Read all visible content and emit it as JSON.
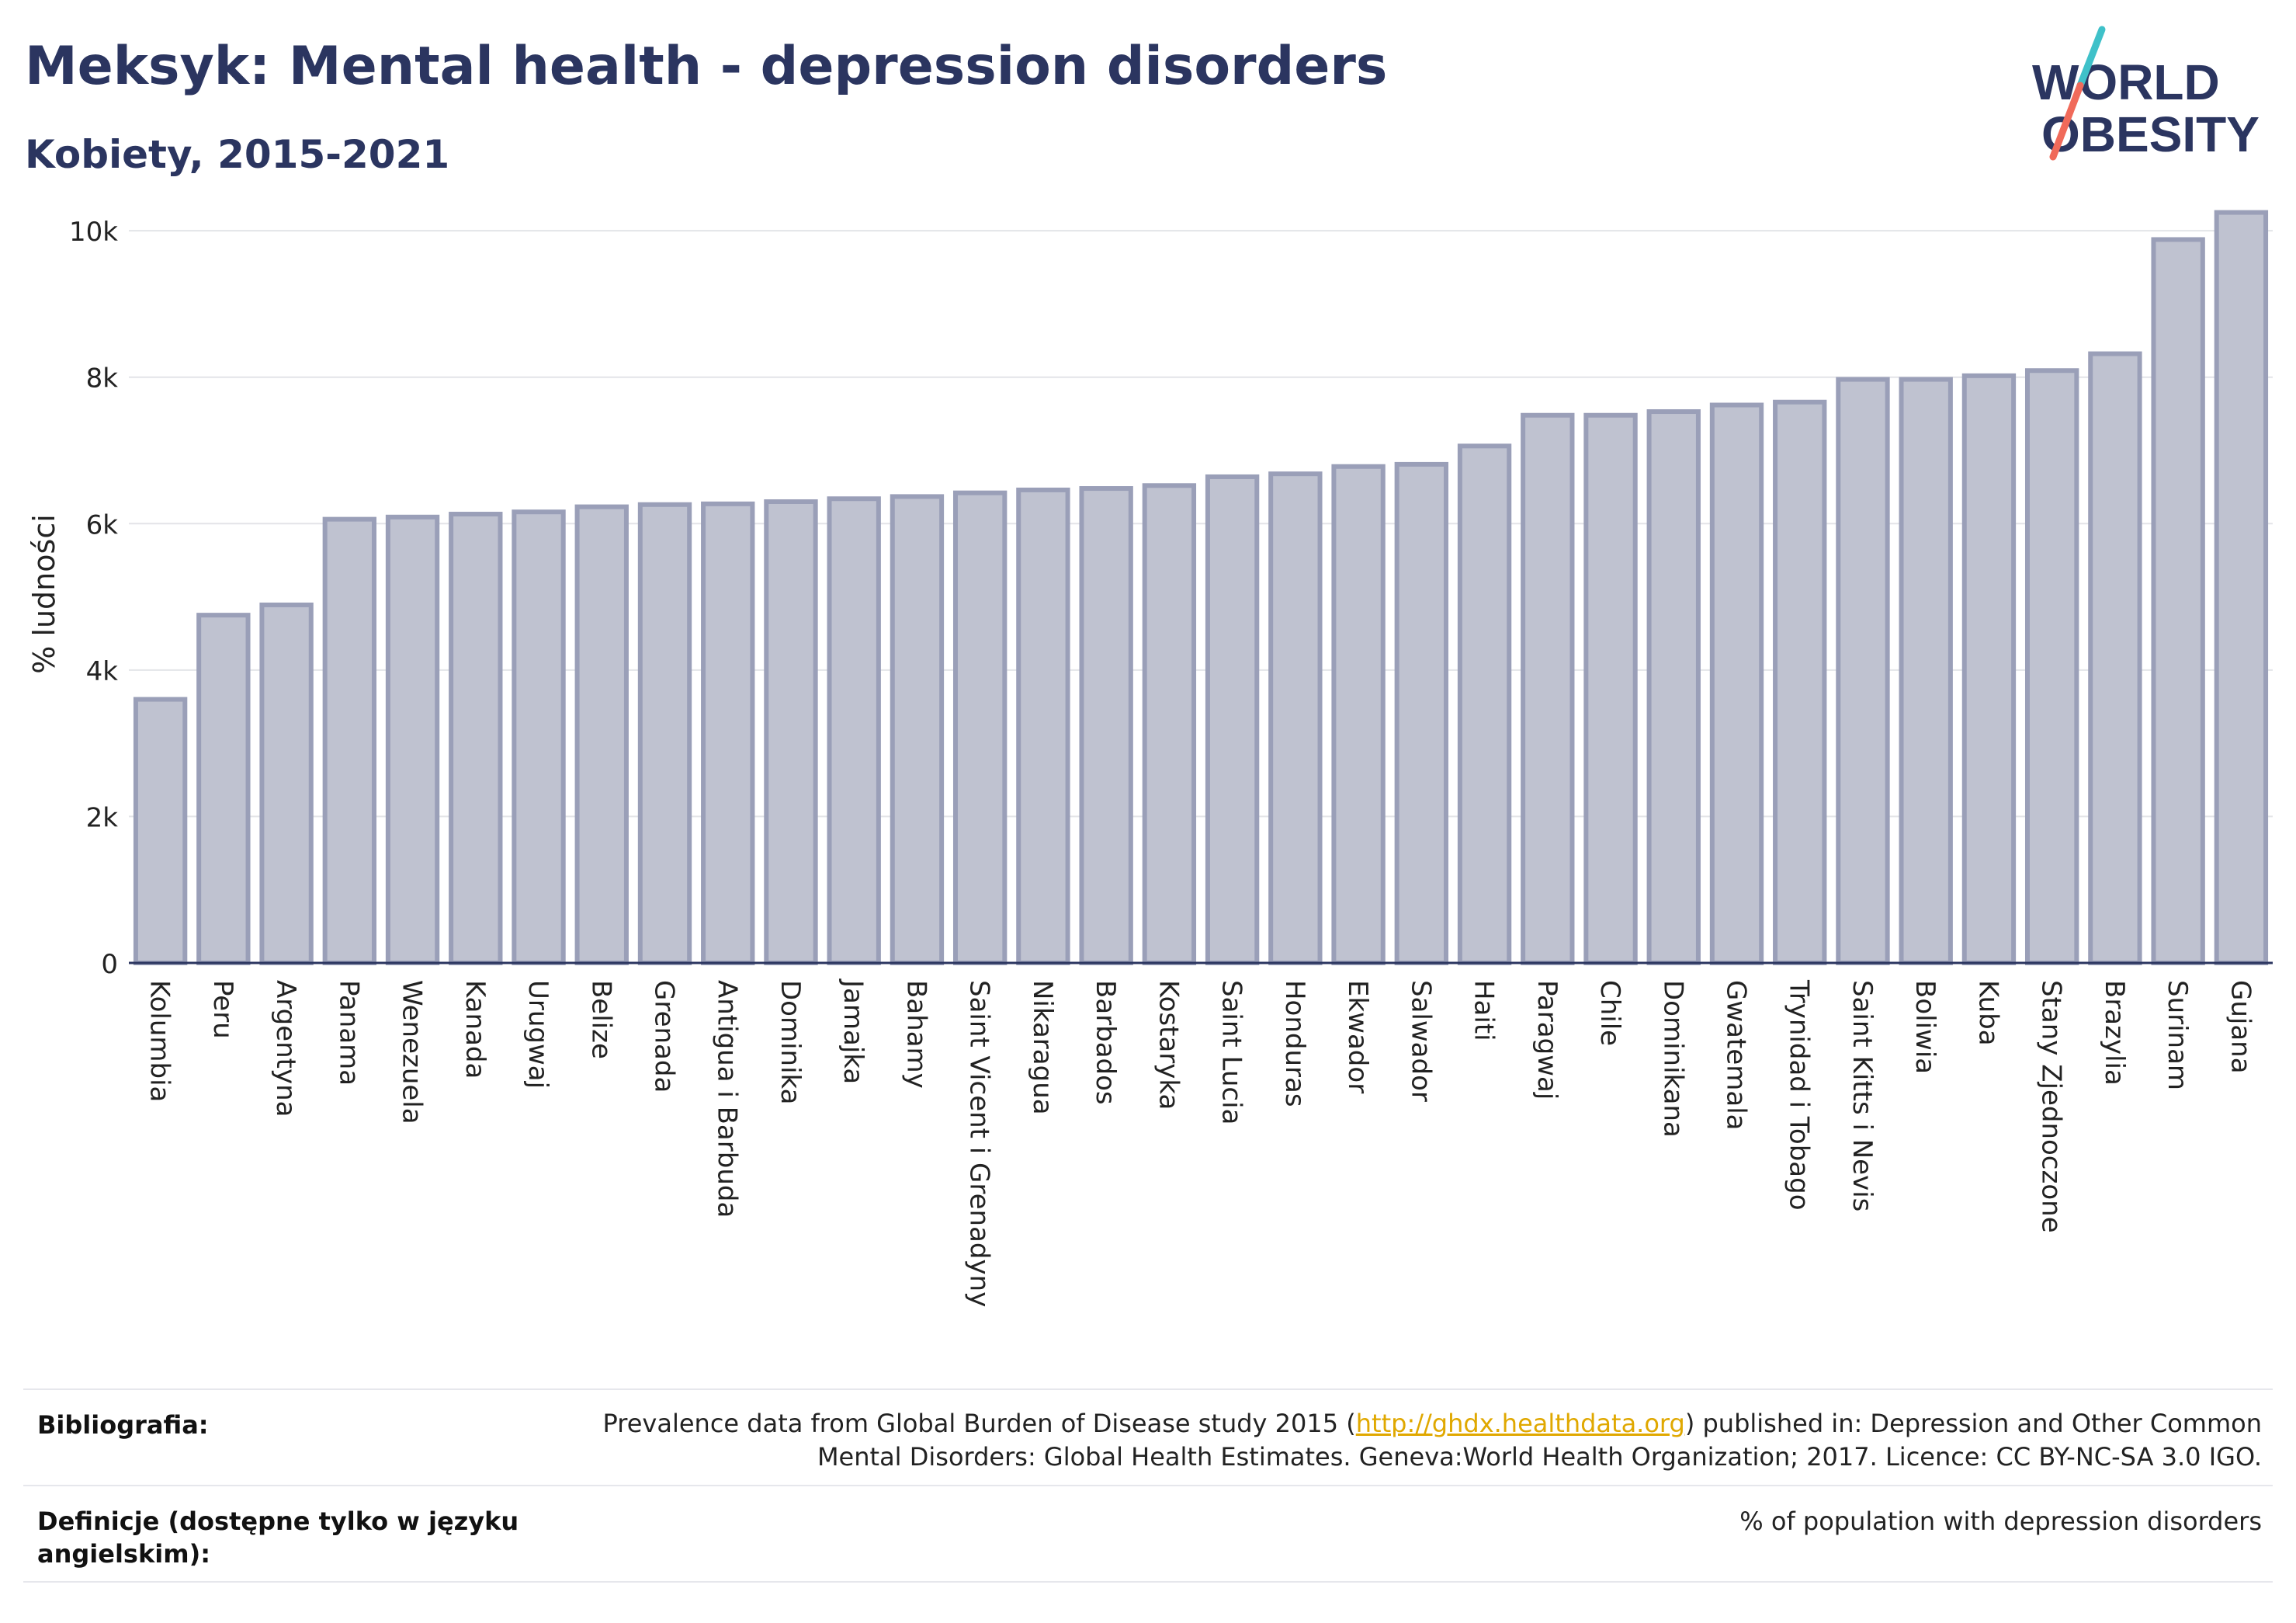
{
  "header": {
    "title": "Meksyk: Mental health - depression disorders",
    "subtitle": "Kobiety, 2015-2021"
  },
  "logo": {
    "line1": "WORLD",
    "line2": "OBESITY",
    "colors": {
      "text": "#2b3560",
      "slash_top": "#3fc1c9",
      "slash_bottom": "#f06a5a"
    }
  },
  "chart_data": {
    "type": "bar",
    "ylabel": "% ludności",
    "xlabel": "",
    "ylim": [
      0,
      10500
    ],
    "yticks": [
      0,
      2000,
      4000,
      6000,
      8000,
      10000
    ],
    "ytick_labels": [
      "0",
      "2k",
      "4k",
      "6k",
      "8k",
      "10k"
    ],
    "grid": true,
    "bar_fill": "#bfc2d0",
    "bar_stroke": "#9a9fb8",
    "categories": [
      "Kolumbia",
      "Peru",
      "Argentyna",
      "Panama",
      "Wenezuela",
      "Kanada",
      "Urugwaj",
      "Belize",
      "Grenada",
      "Antigua i Barbuda",
      "Dominika",
      "Jamajka",
      "Bahamy",
      "Saint Vicent i Grenadyny",
      "Nikaragua",
      "Barbados",
      "Kostaryka",
      "Saint Lucia",
      "Honduras",
      "Ekwador",
      "Salwador",
      "Haiti",
      "Paragwaj",
      "Chile",
      "Dominikana",
      "Gwatemala",
      "Trynidad i Tobago",
      "Saint Kitts i Nevis",
      "Boliwia",
      "Kuba",
      "Stany Zjednoczone",
      "Brazylia",
      "Surinam",
      "Gujana"
    ],
    "values": [
      3600,
      4750,
      4890,
      6060,
      6090,
      6130,
      6160,
      6230,
      6260,
      6270,
      6300,
      6340,
      6370,
      6420,
      6460,
      6480,
      6520,
      6640,
      6680,
      6780,
      6810,
      7060,
      7480,
      7480,
      7530,
      7620,
      7660,
      7970,
      7970,
      8020,
      8090,
      8320,
      9880,
      10250
    ]
  },
  "footer": {
    "bibliography_label": "Bibliografia:",
    "bibliography_pre": "Prevalence data from Global Burden of Disease study 2015 (",
    "bibliography_link": "http://ghdx.healthdata.org",
    "bibliography_post": ") published in: Depression and Other Common",
    "bibliography_line2": "Mental Disorders: Global Health Estimates. Geneva:World Health Organization; 2017. Licence: CC BY-NC-SA 3.0 IGO.",
    "definitions_label_line1": "Definicje (dostępne tylko w języku",
    "definitions_label_line2": "angielskim):",
    "definitions_text": "% of population with depression disorders"
  }
}
